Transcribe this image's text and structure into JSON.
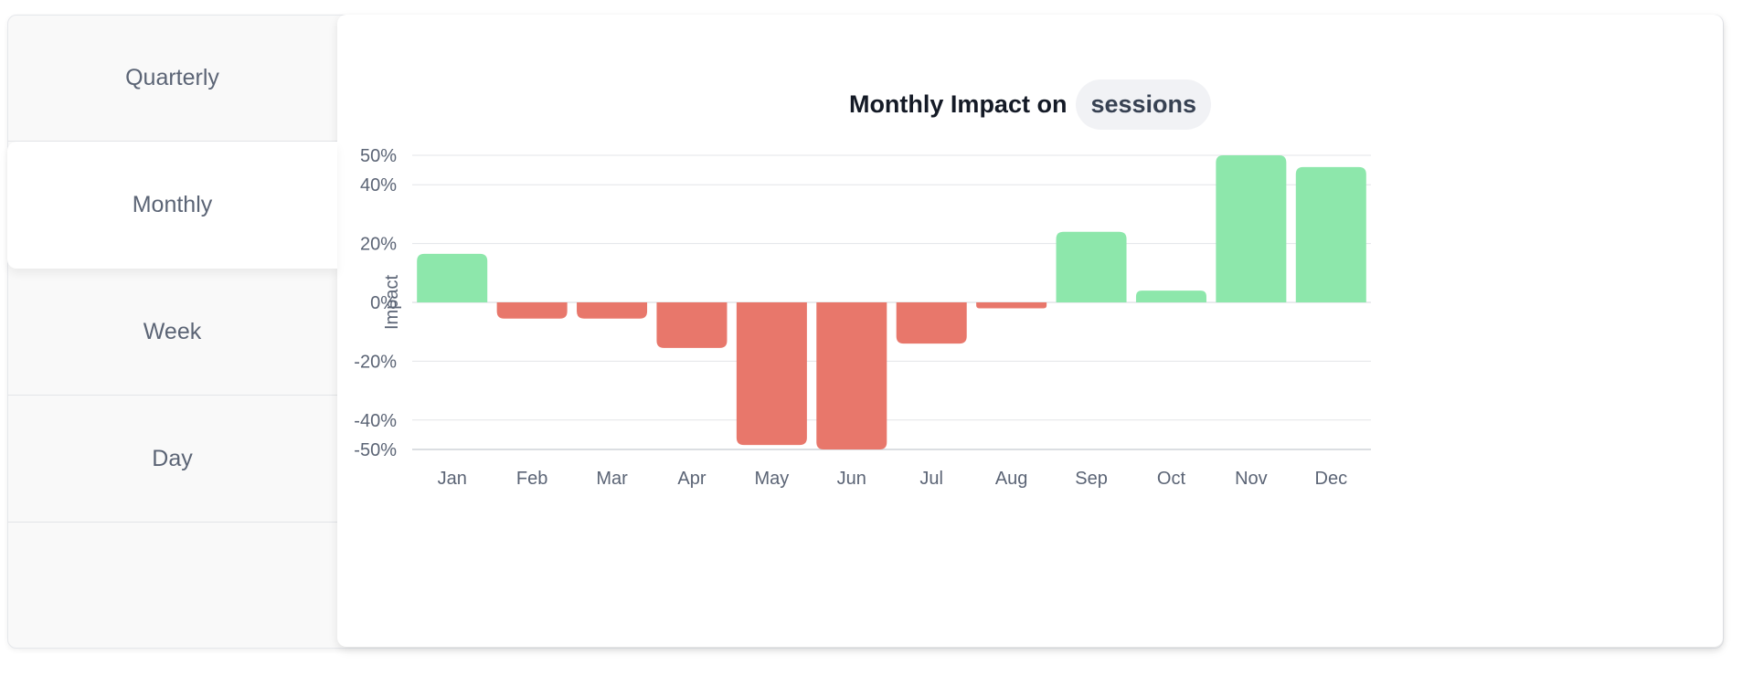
{
  "tabs": [
    {
      "label": "Quarterly",
      "active": false
    },
    {
      "label": "Monthly",
      "active": true
    },
    {
      "label": "Week",
      "active": false
    },
    {
      "label": "Day",
      "active": false
    }
  ],
  "chart_title": {
    "prefix": "Monthly Impact on",
    "metric": "sessions"
  },
  "colors": {
    "positive": "#8de7ab",
    "negative": "#e8776b",
    "grid": "#e3e5e8",
    "text": "#5b6475"
  },
  "chart_data": {
    "type": "bar",
    "title": "Monthly Impact on sessions",
    "ylabel": "Impact",
    "xlabel": "",
    "categories": [
      "Jan",
      "Feb",
      "Mar",
      "Apr",
      "May",
      "Jun",
      "Jul",
      "Aug",
      "Sep",
      "Oct",
      "Nov",
      "Dec"
    ],
    "values": [
      16.5,
      -5.5,
      -5.5,
      -15.5,
      -48.5,
      -50,
      -14,
      -2,
      24,
      4,
      50,
      46
    ],
    "ylim": [
      -50,
      50
    ],
    "yticks": [
      50,
      40,
      20,
      0,
      -20,
      -40,
      -50
    ],
    "ytick_labels": [
      "50%",
      "40%",
      "20%",
      "0%",
      "-20%",
      "-40%",
      "-50%"
    ],
    "grid": true,
    "legend": "none"
  }
}
